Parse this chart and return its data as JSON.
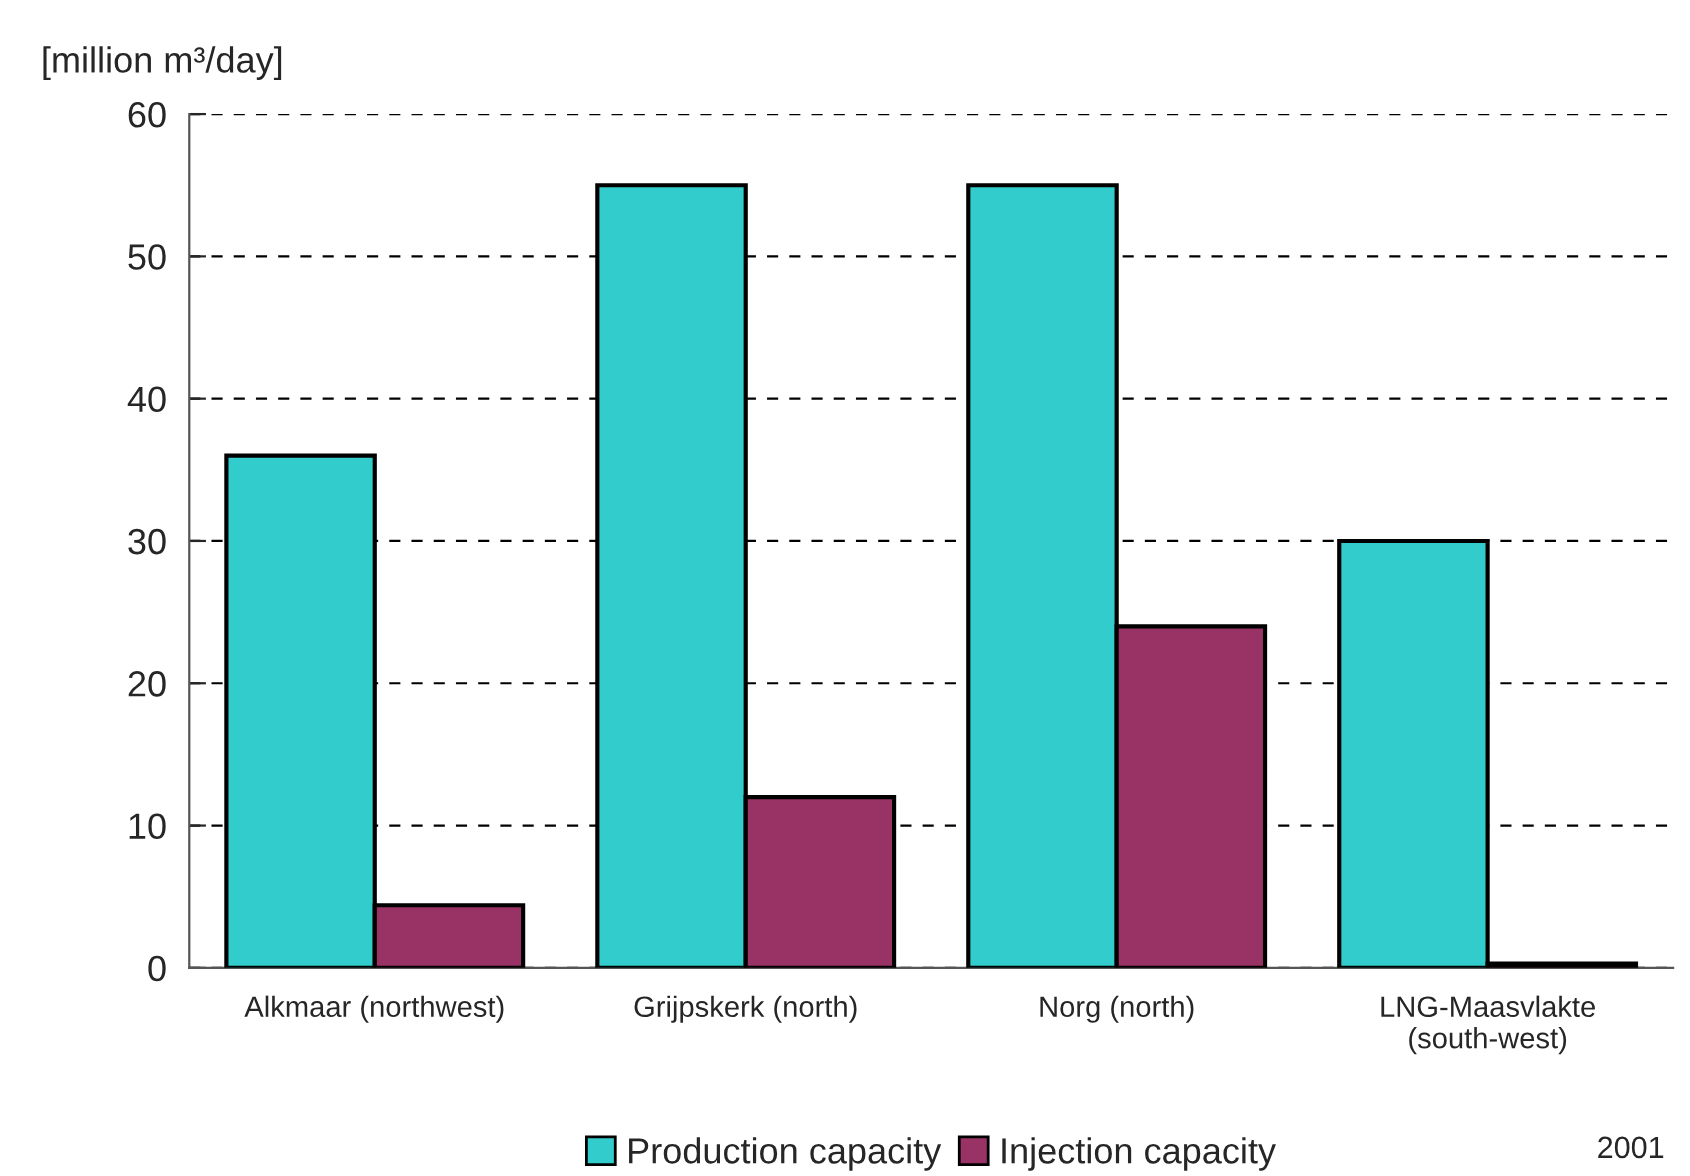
{
  "chart_data": {
    "type": "bar",
    "ylabel": "[million m³/day]",
    "categories": [
      "Alkmaar (northwest)",
      "Grijpskerk (north)",
      "Norg (north)",
      "LNG-Maasvlakte\n(south-west)"
    ],
    "series": [
      {
        "name": "Production capacity",
        "color": "#33cccc",
        "values": [
          36,
          55,
          55,
          30
        ]
      },
      {
        "name": "Injection capacity",
        "color": "#993366",
        "values": [
          4.4,
          12,
          24,
          0.3
        ]
      }
    ],
    "ylim": [
      0,
      60
    ],
    "yticks": [
      0,
      10,
      20,
      30,
      40,
      50,
      60
    ],
    "grid": "y",
    "legend": "bottom",
    "annotations": [
      "2001"
    ]
  }
}
